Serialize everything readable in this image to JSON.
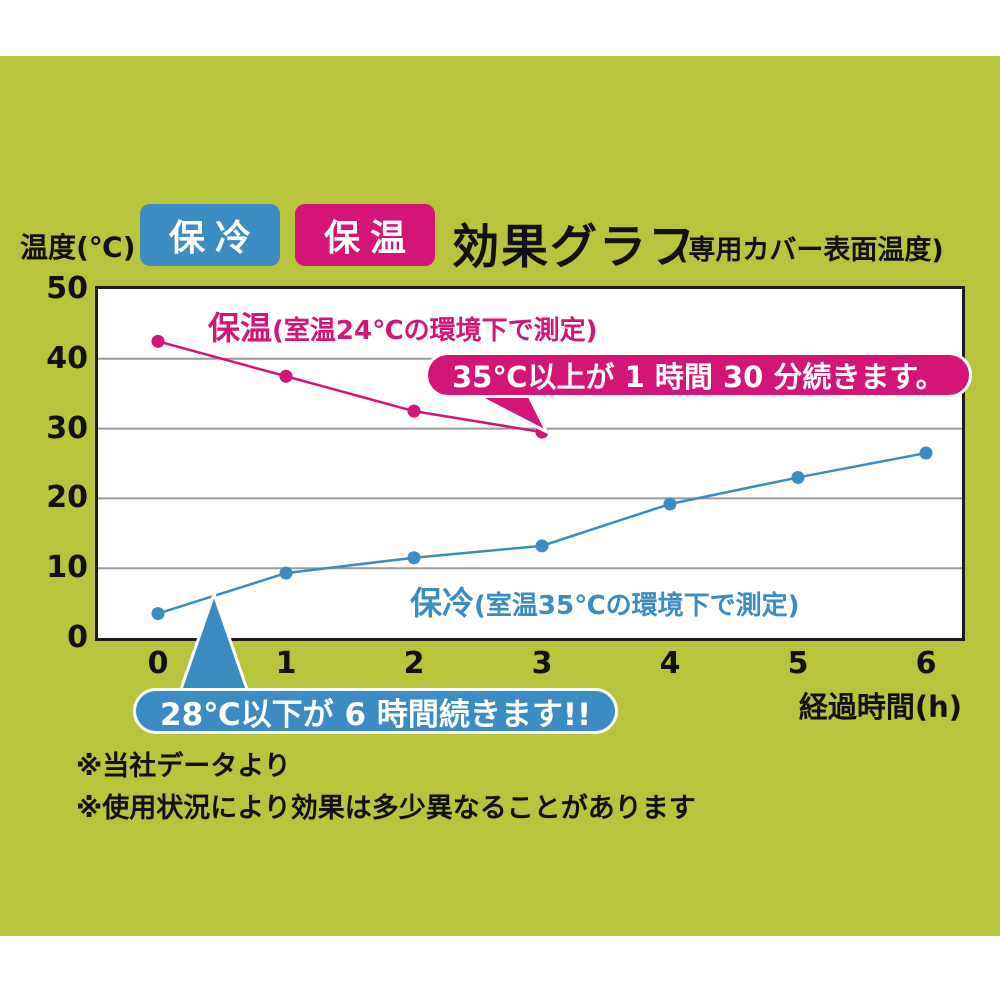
{
  "page": {
    "bg_color": "#b7c43c",
    "cold_color": "#3a8cc3",
    "warm_color": "#d31577"
  },
  "header": {
    "y_axis_unit": "温度(℃)",
    "badge_cold": "保冷",
    "badge_warm": "保温",
    "title": "効果グラフ",
    "subtitle": "(専用カバー表面温度)"
  },
  "chart_data": {
    "type": "line",
    "title": "効果グラフ(専用カバー表面温度)",
    "xlabel": "経過時間(h)",
    "ylabel": "温度(℃)",
    "ylim": [
      0,
      50
    ],
    "yticks": [
      0,
      10,
      20,
      30,
      40,
      50
    ],
    "xticks": [
      0,
      1,
      2,
      3,
      4,
      5,
      6
    ],
    "grid": "horizontal",
    "legend_position": "top",
    "series": [
      {
        "name": "保温",
        "label_big": "保温",
        "label_small": "(室温24℃の環境下で測定)",
        "color": "#d31577",
        "x": [
          0,
          1,
          2,
          3
        ],
        "values": [
          42.5,
          37.5,
          32.5,
          29.5
        ]
      },
      {
        "name": "保冷",
        "label_big": "保冷",
        "label_small": "(室温35℃の環境下で測定)",
        "color": "#3a8cc3",
        "x": [
          0,
          1,
          2,
          3,
          4,
          5,
          6
        ],
        "values": [
          3.5,
          9.3,
          11.5,
          13.2,
          19.2,
          23.0,
          26.5
        ]
      }
    ]
  },
  "annotations": {
    "warm_callout": "35℃以上が 1 時間 30 分続きます。",
    "cold_callout": "28℃以下が 6 時間続きます!!"
  },
  "footnotes": [
    "※当社データより",
    "※使用状況により効果は多少異なることがあります"
  ]
}
